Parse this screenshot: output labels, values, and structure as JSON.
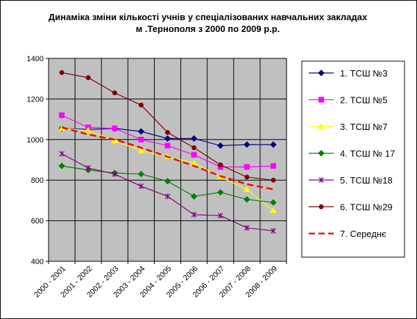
{
  "chart_data": {
    "type": "line",
    "title": [
      "Динаміка зміни кількості учнів у спеціалізованих навчальних закладах",
      "м .Тернополя з 2000 по 2009 р.р."
    ],
    "categories": [
      "2000 - 2001",
      "2001 - 2002",
      "2002 - 2003",
      "2003 - 2004",
      "2004 - 2005",
      "2005 - 2006",
      "2006 - 2007",
      "2007 - 2008",
      "2008 - 2009"
    ],
    "ylim": [
      400,
      1400
    ],
    "yticks": [
      400,
      600,
      800,
      1000,
      1200,
      1400
    ],
    "grid": true,
    "plot_background": "#c0c0c0",
    "legend_position": "right",
    "series": [
      {
        "name": "1. ТСШ №3",
        "color": "#000080",
        "marker": "diamond",
        "values": [
          1055,
          1050,
          1055,
          1040,
          1005,
          1005,
          970,
          975,
          975
        ]
      },
      {
        "name": "2. ТСШ №5",
        "color": "#ff00ff",
        "marker": "square",
        "values": [
          1120,
          1060,
          1055,
          1000,
          970,
          925,
          865,
          865,
          870
        ]
      },
      {
        "name": "3. ТСШ №7",
        "color": "#ffff00",
        "marker": "triangle",
        "values": [
          1055,
          1045,
          995,
          945,
          915,
          885,
          815,
          755,
          650
        ]
      },
      {
        "name": "4. ТСШ № 17",
        "color": "#008000",
        "marker": "diamond",
        "values": [
          870,
          850,
          835,
          830,
          795,
          720,
          740,
          705,
          690
        ]
      },
      {
        "name": "5. ТСШ №18",
        "color": "#800080",
        "marker": "star",
        "values": [
          930,
          860,
          830,
          770,
          720,
          630,
          625,
          565,
          550
        ]
      },
      {
        "name": "6. ТСШ №29",
        "color": "#800000",
        "marker": "circle",
        "values": [
          1330,
          1305,
          1230,
          1170,
          1035,
          960,
          875,
          815,
          800
        ]
      },
      {
        "name": "7. Середнє",
        "color": "#ff0000",
        "marker": "none",
        "dashed": true,
        "values": [
          1060,
          1025,
          1000,
          960,
          915,
          870,
          820,
          780,
          755
        ]
      }
    ]
  }
}
